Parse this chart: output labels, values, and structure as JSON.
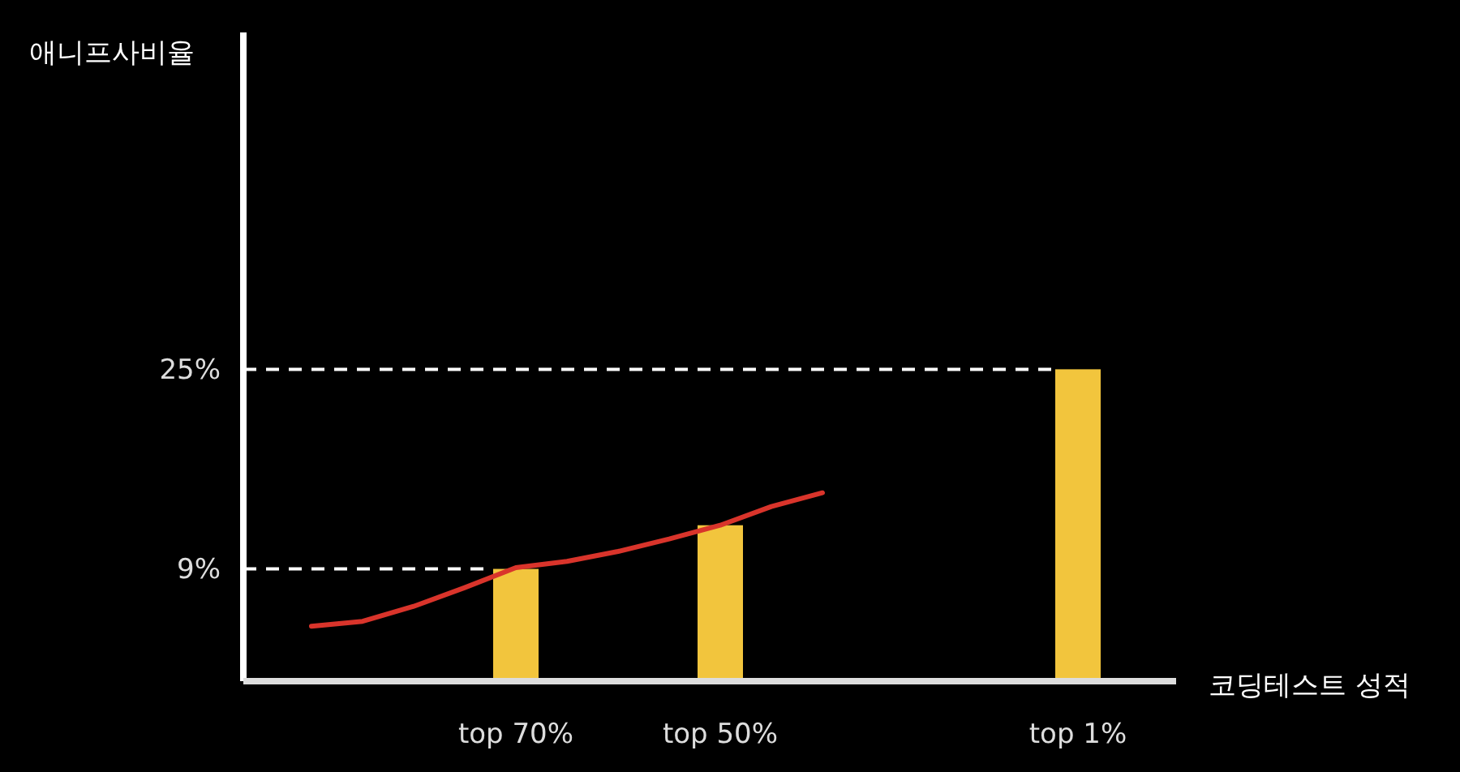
{
  "chart_data": {
    "type": "bar",
    "xlabel": "코딩테스트 성적",
    "ylabel": "애니프사비율",
    "categories": [
      null,
      null,
      null,
      null,
      "top 70%",
      null,
      null,
      null,
      "top 50%",
      null,
      null,
      null,
      null,
      null,
      null,
      "top 1%"
    ],
    "series": [
      {
        "color": "#f2c53d",
        "values": [
          null,
          null,
          null,
          null,
          9,
          null,
          null,
          null,
          12.5,
          null,
          null,
          null,
          null,
          null,
          null,
          25
        ]
      },
      {
        "type": "line",
        "color": "#d9342b",
        "values": [
          4.4,
          4.8,
          6.0,
          7.5,
          9.1,
          9.6,
          10.4,
          11.4,
          12.5,
          14.0,
          15.1,
          null,
          null,
          null,
          null,
          null
        ]
      }
    ],
    "ylim": [
      0,
      52
    ],
    "yticks": [
      {
        "value": 9,
        "label": "9%"
      },
      {
        "value": 25,
        "label": "25%"
      }
    ],
    "ref_lines": [
      {
        "axis": "y",
        "value": 9,
        "label": null,
        "color": "#ffffff",
        "line_style": "dashed"
      },
      {
        "axis": "y",
        "value": 25,
        "label": null,
        "color": "#ffffff",
        "line_style": "dashed"
      }
    ],
    "grid": false
  }
}
